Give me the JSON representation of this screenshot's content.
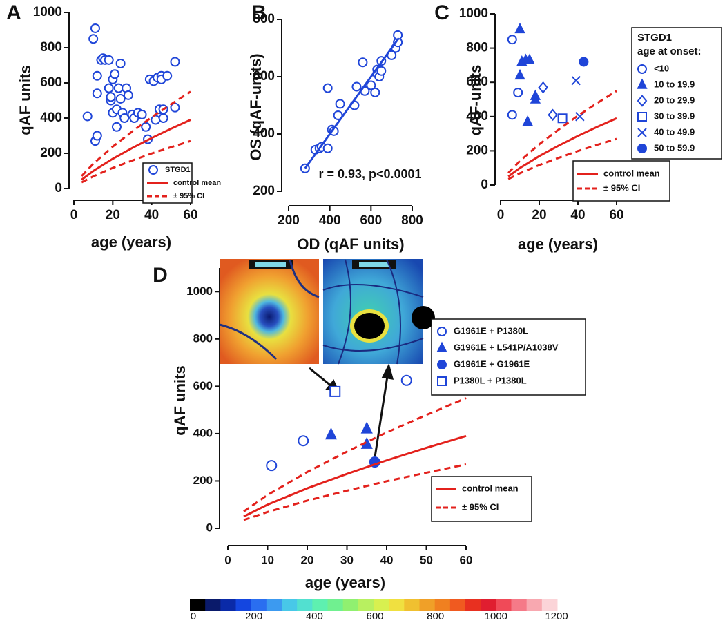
{
  "chart_data": [
    {
      "type": "scatter",
      "panel": "A",
      "xlabel": "age (years)",
      "ylabel": "qAF units",
      "xlim": [
        0,
        60
      ],
      "ylim": [
        0,
        1000
      ],
      "xticks": [
        0,
        20,
        40,
        60
      ],
      "yticks": [
        0,
        200,
        400,
        600,
        800,
        1000
      ],
      "series": [
        {
          "name": "STGD1",
          "color": "#1f45d8",
          "marker": "open-circle",
          "x": [
            7,
            10,
            11,
            11,
            12,
            12,
            12,
            14,
            15,
            16,
            18,
            18,
            19,
            19,
            20,
            20,
            21,
            22,
            22,
            23,
            24,
            24,
            25,
            26,
            27,
            28,
            30,
            31,
            33,
            35,
            37,
            38,
            39,
            41,
            42,
            43,
            44,
            45,
            45,
            46,
            46,
            48,
            52,
            52
          ],
          "values": [
            410,
            850,
            910,
            270,
            300,
            640,
            540,
            730,
            740,
            730,
            570,
            730,
            500,
            520,
            430,
            620,
            650,
            350,
            450,
            570,
            710,
            510,
            430,
            400,
            570,
            530,
            420,
            400,
            430,
            420,
            350,
            280,
            620,
            610,
            390,
            630,
            450,
            640,
            620,
            400,
            450,
            640,
            720,
            460
          ]
        },
        {
          "name": "control mean",
          "color": "#e3211c",
          "line": "solid",
          "x": [
            4,
            10,
            20,
            30,
            40,
            50,
            60
          ],
          "values": [
            50,
            100,
            169,
            230,
            287,
            340,
            390
          ]
        },
        {
          "name": "± 95% CI",
          "color": "#e3211c",
          "line": "dashed",
          "x": [
            4,
            10,
            20,
            30,
            40,
            50,
            60
          ],
          "values": [
            71,
            141,
            238,
            324,
            405,
            479,
            550
          ]
        },
        {
          "color": "#e3211c",
          "line": "dashed",
          "x": [
            4,
            10,
            20,
            30,
            40,
            50,
            60
          ],
          "values": [
            35,
            69,
            117,
            159,
            199,
            235,
            270
          ]
        }
      ]
    },
    {
      "type": "scatter",
      "panel": "B",
      "xlabel": "OD (qAF units)",
      "ylabel": "OS (qAF-units)",
      "xlim": [
        200,
        800
      ],
      "ylim": [
        200,
        800
      ],
      "xticks": [
        200,
        400,
        600,
        800
      ],
      "yticks": [
        200,
        400,
        600,
        800
      ],
      "annotation": "r = 0.93, p<0.0001",
      "series": [
        {
          "color": "#1f45d8",
          "marker": "open-circle",
          "x": [
            280,
            330,
            350,
            360,
            390,
            390,
            410,
            420,
            440,
            450,
            520,
            530,
            560,
            570,
            600,
            620,
            630,
            630,
            640,
            650,
            650,
            700,
            720,
            730,
            730
          ],
          "values": [
            280,
            345,
            350,
            355,
            350,
            560,
            415,
            410,
            465,
            505,
            500,
            565,
            650,
            550,
            570,
            545,
            625,
            610,
            600,
            655,
            620,
            675,
            700,
            720,
            745
          ]
        },
        {
          "color": "#1f45d8",
          "line": "solid",
          "x": [
            280,
            735
          ],
          "values": [
            280,
            735
          ]
        }
      ]
    },
    {
      "type": "scatter",
      "panel": "C",
      "xlabel": "age (years)",
      "ylabel": "qAF-units",
      "xlim": [
        0,
        60
      ],
      "ylim": [
        0,
        1000
      ],
      "xticks": [
        0,
        20,
        40,
        60
      ],
      "yticks": [
        0,
        200,
        400,
        600,
        800,
        1000
      ],
      "legend_title": [
        "STGD1",
        "age at onset:"
      ],
      "series": [
        {
          "name": "<10",
          "color": "#1f45d8",
          "marker": "open-circle",
          "x": [
            6,
            6,
            9
          ],
          "values": [
            850,
            410,
            540
          ]
        },
        {
          "name": "10 to 19.9",
          "color": "#1f45d8",
          "marker": "triangle",
          "x": [
            10,
            11,
            10,
            13,
            15,
            14,
            18,
            18
          ],
          "values": [
            910,
            720,
            640,
            730,
            730,
            370,
            500,
            520
          ]
        },
        {
          "name": "20 to 29.9",
          "color": "#1f45d8",
          "marker": "open-diamond",
          "x": [
            22,
            27
          ],
          "values": [
            570,
            410
          ]
        },
        {
          "name": "30 to 39.9",
          "color": "#1f45d8",
          "marker": "open-square",
          "x": [
            32
          ],
          "values": [
            390
          ]
        },
        {
          "name": "40 to 49.9",
          "color": "#1f45d8",
          "marker": "x",
          "x": [
            39,
            41
          ],
          "values": [
            610,
            400
          ]
        },
        {
          "name": "50 to 59.9",
          "color": "#1f45d8",
          "marker": "filled-circle",
          "x": [
            43
          ],
          "values": [
            720
          ]
        },
        {
          "name": "control mean",
          "color": "#e3211c",
          "line": "solid",
          "x": [
            4,
            10,
            20,
            30,
            40,
            50,
            60
          ],
          "values": [
            50,
            100,
            169,
            230,
            287,
            340,
            390
          ]
        },
        {
          "name": "± 95% CI",
          "color": "#e3211c",
          "line": "dashed",
          "x": [
            4,
            10,
            20,
            30,
            40,
            50,
            60
          ],
          "values": [
            71,
            141,
            238,
            324,
            405,
            479,
            550
          ]
        },
        {
          "color": "#e3211c",
          "line": "dashed",
          "x": [
            4,
            10,
            20,
            30,
            40,
            50,
            60
          ],
          "values": [
            35,
            69,
            117,
            159,
            199,
            235,
            270
          ]
        }
      ]
    },
    {
      "type": "scatter",
      "panel": "D",
      "xlabel": "age (years)",
      "ylabel": "qAF units",
      "xlim": [
        0,
        60
      ],
      "ylim": [
        0,
        1100
      ],
      "xticks": [
        0,
        10,
        20,
        30,
        40,
        50,
        60
      ],
      "yticks": [
        0,
        200,
        400,
        600,
        800,
        1000
      ],
      "series": [
        {
          "name": "G1961E + P1380L",
          "color": "#1f45d8",
          "marker": "open-circle",
          "x": [
            11,
            19,
            45
          ],
          "values": [
            265,
            370,
            625
          ]
        },
        {
          "name": "G1961E + L541P/A1038V",
          "color": "#1f45d8",
          "marker": "triangle",
          "x": [
            26,
            35,
            35
          ],
          "values": [
            395,
            420,
            355
          ]
        },
        {
          "name": "G1961E + G1961E",
          "color": "#1f45d8",
          "marker": "filled-circle",
          "x": [
            37
          ],
          "values": [
            280
          ]
        },
        {
          "name": "P1380L + P1380L",
          "color": "#1f45d8",
          "marker": "open-square",
          "x": [
            27
          ],
          "values": [
            578
          ]
        },
        {
          "name": "control mean",
          "color": "#e3211c",
          "line": "solid",
          "x": [
            4,
            10,
            20,
            30,
            40,
            50,
            60
          ],
          "values": [
            50,
            100,
            169,
            230,
            287,
            340,
            390
          ]
        },
        {
          "name": "± 95% CI",
          "color": "#e3211c",
          "line": "dashed",
          "x": [
            4,
            10,
            20,
            30,
            40,
            50,
            60
          ],
          "values": [
            71,
            141,
            238,
            324,
            405,
            479,
            550
          ]
        },
        {
          "color": "#e3211c",
          "line": "dashed",
          "x": [
            4,
            10,
            20,
            30,
            40,
            50,
            60
          ],
          "values": [
            35,
            69,
            117,
            159,
            199,
            235,
            270
          ]
        }
      ]
    },
    {
      "type": "colorbar",
      "xlim": [
        0,
        1200
      ],
      "xticks": [
        0,
        200,
        400,
        600,
        800,
        1000,
        1200
      ],
      "colors": [
        "#000000",
        "#0a1a6a",
        "#0a2aa8",
        "#1446e0",
        "#2a6ef0",
        "#3c9af0",
        "#48c8e8",
        "#52e0d0",
        "#5ef0b0",
        "#70f090",
        "#90f070",
        "#b8f060",
        "#d8f050",
        "#f0e040",
        "#f0c030",
        "#f0a028",
        "#f08020",
        "#f05a20",
        "#e83020",
        "#e01e30",
        "#f04a58",
        "#f57a88",
        "#f8a8b0",
        "#fbd4d8"
      ]
    }
  ]
}
